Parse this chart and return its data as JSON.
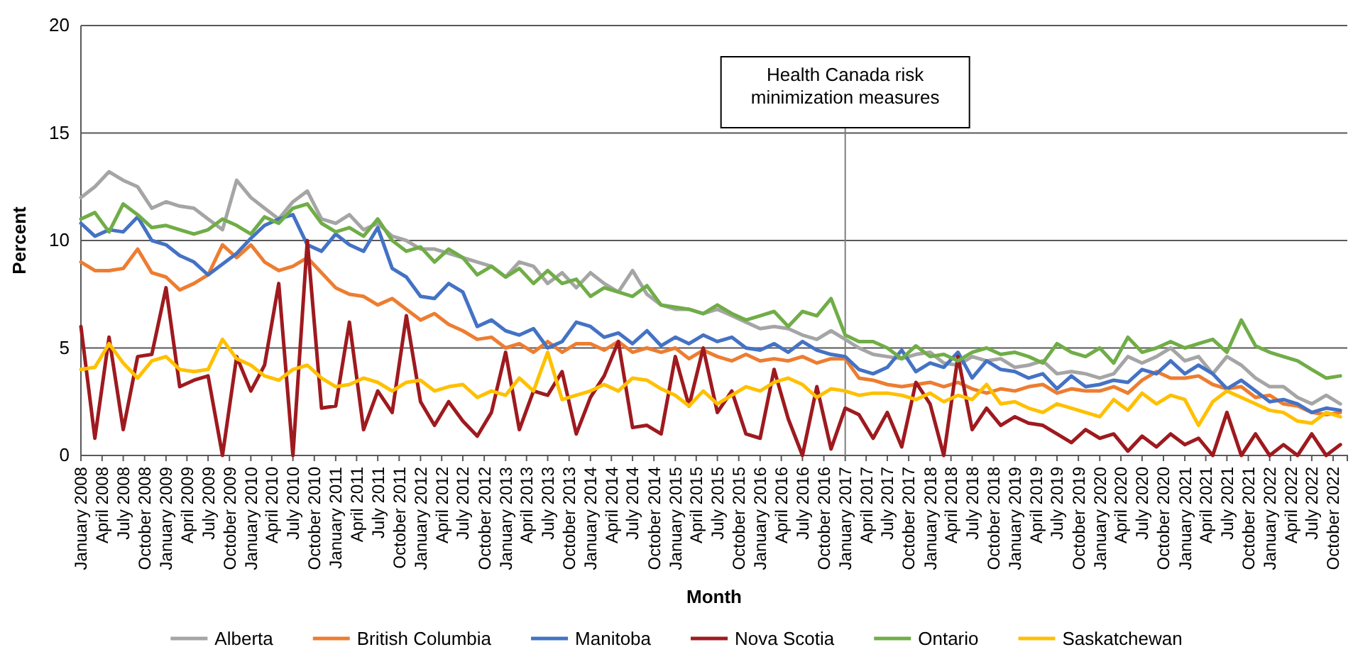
{
  "chart_data": {
    "type": "line",
    "xlabel": "Month",
    "ylabel": "Percent",
    "x": [
      "2008-01",
      "2008-03",
      "2008-05",
      "2008-07",
      "2008-09",
      "2008-11",
      "2009-01",
      "2009-03",
      "2009-05",
      "2009-07",
      "2009-09",
      "2009-11",
      "2010-01",
      "2010-03",
      "2010-05",
      "2010-07",
      "2010-09",
      "2010-11",
      "2011-01",
      "2011-03",
      "2011-05",
      "2011-07",
      "2011-09",
      "2011-11",
      "2012-01",
      "2012-03",
      "2012-05",
      "2012-07",
      "2012-09",
      "2012-11",
      "2013-01",
      "2013-03",
      "2013-05",
      "2013-07",
      "2013-09",
      "2013-11",
      "2014-01",
      "2014-03",
      "2014-05",
      "2014-07",
      "2014-09",
      "2014-11",
      "2015-01",
      "2015-03",
      "2015-05",
      "2015-07",
      "2015-09",
      "2015-11",
      "2016-01",
      "2016-03",
      "2016-05",
      "2016-07",
      "2016-09",
      "2016-11",
      "2017-01",
      "2017-03",
      "2017-05",
      "2017-07",
      "2017-09",
      "2017-11",
      "2018-01",
      "2018-03",
      "2018-05",
      "2018-07",
      "2018-09",
      "2018-11",
      "2019-01",
      "2019-03",
      "2019-05",
      "2019-07",
      "2019-09",
      "2019-11",
      "2020-01",
      "2020-03",
      "2020-05",
      "2020-07",
      "2020-09",
      "2020-11",
      "2021-01",
      "2021-03",
      "2021-05",
      "2021-07",
      "2021-09",
      "2021-11",
      "2022-01",
      "2022-03",
      "2022-05",
      "2022-07",
      "2022-09",
      "2022-11"
    ],
    "series": [
      {
        "name": "Alberta",
        "color": "#a5a5a5",
        "values": [
          12,
          12.5,
          13.2,
          12.8,
          12.5,
          11.5,
          11.8,
          11.6,
          11.5,
          11.0,
          10.5,
          12.8,
          12.0,
          11.5,
          11.0,
          11.8,
          12.3,
          11.0,
          10.8,
          11.2,
          10.5,
          10.8,
          10.2,
          10.0,
          9.6,
          9.6,
          9.4,
          9.2,
          9.0,
          8.8,
          8.3,
          9.0,
          8.8,
          8.0,
          8.5,
          7.8,
          8.5,
          8.0,
          7.6,
          8.6,
          7.5,
          7.0,
          6.8,
          6.8,
          6.6,
          6.8,
          6.5,
          6.2,
          5.9,
          6.0,
          5.9,
          5.6,
          5.4,
          5.8,
          5.4,
          5.0,
          4.7,
          4.6,
          4.5,
          4.7,
          4.8,
          4.3,
          4.2,
          4.6,
          4.4,
          4.5,
          4.1,
          4.2,
          4.4,
          3.8,
          3.9,
          3.8,
          3.6,
          3.8,
          4.6,
          4.3,
          4.6,
          5.0,
          4.4,
          4.6,
          3.8,
          4.6,
          4.2,
          3.6,
          3.2,
          3.2,
          2.7,
          2.4,
          2.8,
          2.4
        ]
      },
      {
        "name": "British Columbia",
        "color": "#ed7d31",
        "values": [
          9.0,
          8.6,
          8.6,
          8.7,
          9.6,
          8.5,
          8.3,
          7.7,
          8.0,
          8.4,
          9.8,
          9.2,
          9.8,
          9.0,
          8.6,
          8.8,
          9.2,
          8.5,
          7.8,
          7.5,
          7.4,
          7.0,
          7.3,
          6.8,
          6.3,
          6.6,
          6.1,
          5.8,
          5.4,
          5.5,
          5.0,
          5.2,
          4.8,
          5.3,
          4.8,
          5.2,
          5.2,
          4.9,
          5.3,
          4.8,
          5.0,
          4.8,
          5.0,
          4.5,
          4.9,
          4.6,
          4.4,
          4.7,
          4.4,
          4.5,
          4.4,
          4.6,
          4.3,
          4.5,
          4.5,
          3.6,
          3.5,
          3.3,
          3.2,
          3.3,
          3.4,
          3.2,
          3.4,
          3.1,
          2.9,
          3.1,
          3.0,
          3.2,
          3.3,
          2.9,
          3.1,
          3.0,
          3.0,
          3.2,
          2.9,
          3.5,
          3.9,
          3.6,
          3.6,
          3.7,
          3.3,
          3.1,
          3.2,
          2.7,
          2.8,
          2.4,
          2.3,
          2.0,
          1.9,
          2.0
        ]
      },
      {
        "name": "Manitoba",
        "color": "#4472c4",
        "values": [
          10.8,
          10.2,
          10.5,
          10.4,
          11.1,
          10,
          9.8,
          9.3,
          9.0,
          8.4,
          8.9,
          9.4,
          10.1,
          10.7,
          11.0,
          11.2,
          9.8,
          9.5,
          10.3,
          9.8,
          9.5,
          10.6,
          8.7,
          8.3,
          7.4,
          7.3,
          8.0,
          7.6,
          6.0,
          6.3,
          5.8,
          5.6,
          5.9,
          5.0,
          5.3,
          6.2,
          6.0,
          5.5,
          5.7,
          5.2,
          5.8,
          5.1,
          5.5,
          5.2,
          5.6,
          5.3,
          5.5,
          5.0,
          4.9,
          5.2,
          4.8,
          5.3,
          4.9,
          4.7,
          4.6,
          4.0,
          3.8,
          4.1,
          4.9,
          3.9,
          4.3,
          4.1,
          4.8,
          3.6,
          4.4,
          4.0,
          3.9,
          3.6,
          3.8,
          3.1,
          3.7,
          3.2,
          3.3,
          3.5,
          3.4,
          4.0,
          3.8,
          4.4,
          3.8,
          4.2,
          3.8,
          3.1,
          3.5,
          3.0,
          2.5,
          2.6,
          2.4,
          2.0,
          2.2,
          2.1
        ]
      },
      {
        "name": "Nova Scotia",
        "color": "#9e1a1f",
        "values": [
          6.0,
          0.8,
          5.5,
          1.2,
          4.6,
          4.7,
          7.8,
          3.2,
          3.5,
          3.7,
          0.0,
          4.6,
          3.0,
          4.2,
          8.0,
          0.0,
          10.0,
          2.2,
          2.3,
          6.2,
          1.2,
          3.0,
          2.0,
          6.5,
          2.5,
          1.4,
          2.5,
          1.6,
          0.9,
          2.0,
          4.8,
          1.2,
          3.0,
          2.8,
          3.9,
          1.0,
          2.7,
          3.7,
          5.3,
          1.3,
          1.4,
          1.0,
          4.6,
          2.3,
          5.0,
          2.0,
          3.0,
          1.0,
          0.8,
          4.0,
          1.7,
          0.0,
          3.2,
          0.3,
          2.2,
          1.9,
          0.8,
          2.0,
          0.4,
          3.4,
          2.4,
          0.0,
          4.6,
          1.2,
          2.2,
          1.4,
          1.8,
          1.5,
          1.4,
          1.0,
          0.6,
          1.2,
          0.8,
          1.0,
          0.2,
          0.9,
          0.4,
          1.0,
          0.5,
          0.8,
          0.0,
          2.0,
          0.0,
          1.0,
          0.0,
          0.5,
          0.0,
          1.0,
          0.0,
          0.5
        ]
      },
      {
        "name": "Ontario",
        "color": "#70ad47",
        "values": [
          11,
          11.3,
          10.4,
          11.7,
          11.2,
          10.6,
          10.7,
          10.5,
          10.3,
          10.5,
          11,
          10.7,
          10.3,
          11.1,
          10.8,
          11.5,
          11.7,
          10.8,
          10.4,
          10.6,
          10.2,
          11,
          10,
          9.5,
          9.7,
          9.0,
          9.6,
          9.2,
          8.4,
          8.8,
          8.3,
          8.7,
          8.0,
          8.6,
          8.0,
          8.2,
          7.4,
          7.8,
          7.6,
          7.4,
          7.9,
          7.0,
          6.9,
          6.8,
          6.6,
          7.0,
          6.6,
          6.3,
          6.5,
          6.7,
          6.0,
          6.7,
          6.5,
          7.3,
          5.6,
          5.3,
          5.3,
          5.0,
          4.5,
          5.1,
          4.6,
          4.7,
          4.4,
          4.8,
          5.0,
          4.7,
          4.8,
          4.6,
          4.3,
          5.2,
          4.8,
          4.6,
          5.0,
          4.3,
          5.5,
          4.8,
          5.0,
          5.3,
          5.0,
          5.2,
          5.4,
          4.8,
          6.3,
          5.1,
          4.8,
          4.6,
          4.4,
          4.0,
          3.6,
          3.7
        ]
      },
      {
        "name": "Saskatchewan",
        "color": "#ffc000",
        "values": [
          4.0,
          4.1,
          5.2,
          4.3,
          3.6,
          4.4,
          4.6,
          4.0,
          3.9,
          4.0,
          5.4,
          4.5,
          4.2,
          3.7,
          3.5,
          4.0,
          4.2,
          3.6,
          3.2,
          3.3,
          3.6,
          3.4,
          3.0,
          3.4,
          3.5,
          3.0,
          3.2,
          3.3,
          2.7,
          3.0,
          2.8,
          3.6,
          3.0,
          4.8,
          2.6,
          2.8,
          3.0,
          3.3,
          3.0,
          3.6,
          3.5,
          3.1,
          2.8,
          2.3,
          3.0,
          2.4,
          2.8,
          3.2,
          3.0,
          3.4,
          3.6,
          3.3,
          2.7,
          3.1,
          3.0,
          2.8,
          2.9,
          2.9,
          2.8,
          2.6,
          2.9,
          2.5,
          2.8,
          2.6,
          3.3,
          2.4,
          2.5,
          2.2,
          2.0,
          2.4,
          2.2,
          2.0,
          1.8,
          2.6,
          2.1,
          2.9,
          2.4,
          2.8,
          2.6,
          1.4,
          2.5,
          3.0,
          2.7,
          2.4,
          2.1,
          2.0,
          1.6,
          1.5,
          2.0,
          1.8
        ]
      }
    ],
    "xlim": [
      "2008-01",
      "2022-12"
    ],
    "xticks": [
      {
        "value": "2008-01",
        "label": "January 2008"
      },
      {
        "value": "2008-04",
        "label": "April 2008"
      },
      {
        "value": "2008-07",
        "label": "July 2008"
      },
      {
        "value": "2008-10",
        "label": "October 2008"
      },
      {
        "value": "2009-01",
        "label": "January 2009"
      },
      {
        "value": "2009-04",
        "label": "April 2009"
      },
      {
        "value": "2009-07",
        "label": "July 2009"
      },
      {
        "value": "2009-10",
        "label": "October 2009"
      },
      {
        "value": "2010-01",
        "label": "January 2010"
      },
      {
        "value": "2010-04",
        "label": "April 2010"
      },
      {
        "value": "2010-07",
        "label": "July 2010"
      },
      {
        "value": "2010-10",
        "label": "October 2010"
      },
      {
        "value": "2011-01",
        "label": "January 2011"
      },
      {
        "value": "2011-04",
        "label": "April 2011"
      },
      {
        "value": "2011-07",
        "label": "July 2011"
      },
      {
        "value": "2011-10",
        "label": "October 2011"
      },
      {
        "value": "2012-01",
        "label": "January 2012"
      },
      {
        "value": "2012-04",
        "label": "April 2012"
      },
      {
        "value": "2012-07",
        "label": "July 2012"
      },
      {
        "value": "2012-10",
        "label": "October 2012"
      },
      {
        "value": "2013-01",
        "label": "January 2013"
      },
      {
        "value": "2013-04",
        "label": "April 2013"
      },
      {
        "value": "2013-07",
        "label": "July 2013"
      },
      {
        "value": "2013-10",
        "label": "October 2013"
      },
      {
        "value": "2014-01",
        "label": "January 2014"
      },
      {
        "value": "2014-04",
        "label": "April 2014"
      },
      {
        "value": "2014-07",
        "label": "July 2014"
      },
      {
        "value": "2014-10",
        "label": "October 2014"
      },
      {
        "value": "2015-01",
        "label": "January 2015"
      },
      {
        "value": "2015-04",
        "label": "April 2015"
      },
      {
        "value": "2015-07",
        "label": "July 2015"
      },
      {
        "value": "2015-10",
        "label": "October 2015"
      },
      {
        "value": "2016-01",
        "label": "January 2016"
      },
      {
        "value": "2016-04",
        "label": "April 2016"
      },
      {
        "value": "2016-07",
        "label": "July 2016"
      },
      {
        "value": "2016-10",
        "label": "October 2016"
      },
      {
        "value": "2017-01",
        "label": "January 2017"
      },
      {
        "value": "2017-04",
        "label": "April 2017"
      },
      {
        "value": "2017-07",
        "label": "July 2017"
      },
      {
        "value": "2017-10",
        "label": "October 2017"
      },
      {
        "value": "2018-01",
        "label": "January 2018"
      },
      {
        "value": "2018-04",
        "label": "April 2018"
      },
      {
        "value": "2018-07",
        "label": "July 2018"
      },
      {
        "value": "2018-10",
        "label": "October 2018"
      },
      {
        "value": "2019-01",
        "label": "January 2019"
      },
      {
        "value": "2019-04",
        "label": "April 2019"
      },
      {
        "value": "2019-07",
        "label": "July 2019"
      },
      {
        "value": "2019-10",
        "label": "October 2019"
      },
      {
        "value": "2020-01",
        "label": "January 2020"
      },
      {
        "value": "2020-04",
        "label": "April 2020"
      },
      {
        "value": "2020-07",
        "label": "July 2020"
      },
      {
        "value": "2020-10",
        "label": "October 2020"
      },
      {
        "value": "2021-01",
        "label": "January 2021"
      },
      {
        "value": "2021-04",
        "label": "April 2021"
      },
      {
        "value": "2021-07",
        "label": "July 2021"
      },
      {
        "value": "2021-10",
        "label": "October 2021"
      },
      {
        "value": "2022-01",
        "label": "January 2022"
      },
      {
        "value": "2022-04",
        "label": "April 2022"
      },
      {
        "value": "2022-07",
        "label": "July 2022"
      },
      {
        "value": "2022-10",
        "label": "October 2022"
      }
    ],
    "ylim": [
      0,
      20
    ],
    "yticks": [
      0,
      5,
      10,
      15,
      20
    ],
    "grid": "y",
    "legend": "bottom",
    "ref_lines": [
      {
        "axis": "x",
        "value": "2017-01",
        "label": "Health Canada risk minimization measures",
        "color": "#7f7f7f"
      }
    ]
  }
}
